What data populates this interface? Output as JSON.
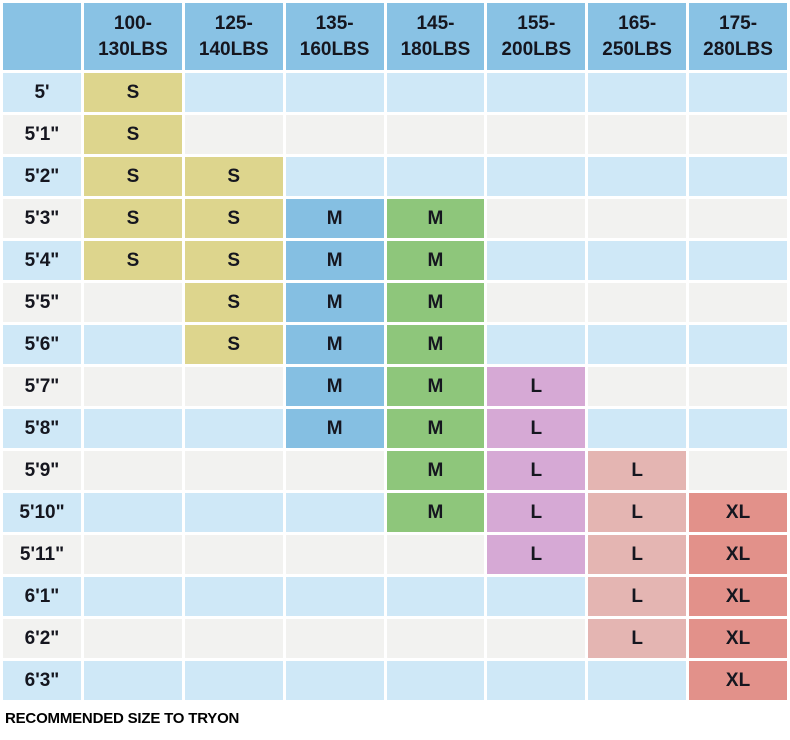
{
  "chart_data": {
    "type": "table",
    "title": "",
    "corner_label": "",
    "columns": [
      "100-130LBS",
      "125-140LBS",
      "135-160LBS",
      "145-180LBS",
      "155-200LBS",
      "165-250LBS",
      "175-280LBS"
    ],
    "rows": [
      "5'",
      "5'1\"",
      "5'2\"",
      "5'3\"",
      "5'4\"",
      "5'5\"",
      "5'6\"",
      "5'7\"",
      "5'8\"",
      "5'9\"",
      "5'10\"",
      "5'11\"",
      "6'1\"",
      "6'2\"",
      "6'3\""
    ],
    "matrix": [
      [
        "S",
        "",
        "",
        "",
        "",
        "",
        ""
      ],
      [
        "S",
        "",
        "",
        "",
        "",
        "",
        ""
      ],
      [
        "S",
        "S",
        "",
        "",
        "",
        "",
        ""
      ],
      [
        "S",
        "S",
        "M",
        "M",
        "",
        "",
        ""
      ],
      [
        "S",
        "S",
        "M",
        "M",
        "",
        "",
        ""
      ],
      [
        "",
        "S",
        "M",
        "M",
        "",
        "",
        ""
      ],
      [
        "",
        "S",
        "M",
        "M",
        "",
        "",
        ""
      ],
      [
        "",
        "",
        "M",
        "M",
        "L",
        "",
        ""
      ],
      [
        "",
        "",
        "M",
        "M",
        "L",
        "",
        ""
      ],
      [
        "",
        "",
        "",
        "M",
        "L",
        "L",
        ""
      ],
      [
        "",
        "",
        "",
        "M",
        "L",
        "L",
        "XL"
      ],
      [
        "",
        "",
        "",
        "",
        "L",
        "L",
        "XL"
      ],
      [
        "",
        "",
        "",
        "",
        "",
        "L",
        "XL"
      ],
      [
        "",
        "",
        "",
        "",
        "",
        "L",
        "XL"
      ],
      [
        "",
        "",
        "",
        "",
        "",
        "",
        "XL"
      ]
    ],
    "note": "RECOMMENDED SIZE TO TRYON",
    "legend_position": "none",
    "grid": true
  },
  "colors": {
    "header_bg": "#89c2e4",
    "row_blue": "#cfe8f7",
    "row_gray": "#f2f2f0",
    "grid_white": "#ffffff",
    "text": "#15161f",
    "column_fills": [
      "#ddd58d",
      "#ddd58d",
      "#85bfe2",
      "#8ec67b",
      "#d6a9d5",
      "#e4b5b2",
      "#e2918a"
    ]
  }
}
